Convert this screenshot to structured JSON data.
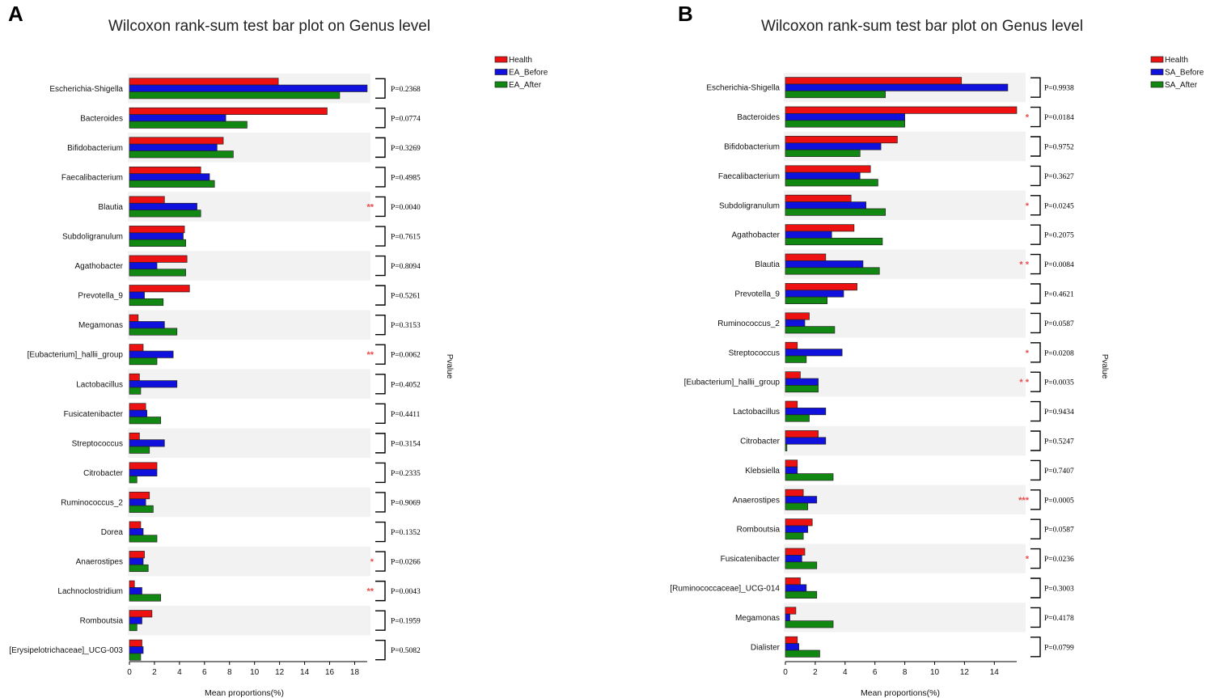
{
  "chart_data": [
    {
      "panel_label": "A",
      "type": "bar",
      "orientation": "horizontal",
      "title": "Wilcoxon rank-sum test bar plot on Genus level",
      "xlabel": "Mean proportions(%)",
      "side_label": "Pvalue",
      "xlim": [
        0,
        19
      ],
      "xticks": [
        "0",
        "2",
        "4",
        "6",
        "8",
        "10",
        "12",
        "14",
        "16",
        "18"
      ],
      "legend": [
        "Health",
        "EA_Before",
        "EA_After"
      ],
      "colors": [
        "#ee1111",
        "#1111dd",
        "#118811"
      ],
      "categories": [
        "Escherichia-Shigella",
        "Bacteroides",
        "Bifidobacterium",
        "Faecalibacterium",
        "Blautia",
        "Subdoligranulum",
        "Agathobacter",
        "Prevotella_9",
        "Megamonas",
        "[Eubacterium]_hallii_group",
        "Lactobacillus",
        "Fusicatenibacter",
        "Streptococcus",
        "Citrobacter",
        "Ruminococcus_2",
        "Dorea",
        "Anaerostipes",
        "Lachnoclostridium",
        "Romboutsia",
        "[Erysipelotrichaceae]_UCG-003"
      ],
      "series": [
        {
          "name": "Health",
          "values": [
            11.9,
            15.8,
            7.5,
            5.7,
            2.8,
            4.4,
            4.6,
            4.8,
            0.7,
            1.1,
            0.8,
            1.3,
            0.8,
            2.2,
            1.6,
            0.9,
            1.2,
            0.4,
            1.8,
            1.0
          ]
        },
        {
          "name": "EA_Before",
          "values": [
            19.0,
            7.7,
            7.0,
            6.4,
            5.4,
            4.3,
            2.2,
            1.2,
            2.8,
            3.5,
            3.8,
            1.4,
            2.8,
            2.2,
            1.3,
            1.1,
            1.1,
            1.0,
            1.0,
            1.1
          ]
        },
        {
          "name": "EA_After",
          "values": [
            16.8,
            9.4,
            8.3,
            6.8,
            5.7,
            4.5,
            4.5,
            2.7,
            3.8,
            2.2,
            0.9,
            2.5,
            1.6,
            0.6,
            1.9,
            2.2,
            1.5,
            2.5,
            0.6,
            0.9
          ]
        }
      ],
      "pvalues": [
        "P=0.2368",
        "P=0.0774",
        "P=0.3269",
        "P=0.4985",
        "P=0.0040",
        "P=0.7615",
        "P=0.8094",
        "P=0.5261",
        "P=0.3153",
        "P=0.0062",
        "P=0.4052",
        "P=0.4411",
        "P=0.3154",
        "P=0.2335",
        "P=0.9069",
        "P=0.1352",
        "P=0.0266",
        "P=0.0043",
        "P=0.1959",
        "P=0.5082"
      ],
      "stars": [
        "",
        "",
        "",
        "",
        "**",
        "",
        "",
        "",
        "",
        "**",
        "",
        "",
        "",
        "",
        "",
        "",
        "*",
        "**",
        "",
        ""
      ]
    },
    {
      "panel_label": "B",
      "type": "bar",
      "orientation": "horizontal",
      "title": "Wilcoxon rank-sum test bar plot on Genus level",
      "xlabel": "Mean proportions(%)",
      "side_label": "Pvalue",
      "xlim": [
        0,
        15.5
      ],
      "xticks": [
        "0",
        "2",
        "4",
        "6",
        "8",
        "10",
        "12",
        "14"
      ],
      "legend": [
        "Health",
        "SA_Before",
        "SA_After"
      ],
      "colors": [
        "#ee1111",
        "#1111dd",
        "#118811"
      ],
      "categories": [
        "Escherichia-Shigella",
        "Bacteroides",
        "Bifidobacterium",
        "Faecalibacterium",
        "Subdoligranulum",
        "Agathobacter",
        "Blautia",
        "Prevotella_9",
        "Ruminococcus_2",
        "Streptococcus",
        "[Eubacterium]_hallii_group",
        "Lactobacillus",
        "Citrobacter",
        "Klebsiella",
        "Anaerostipes",
        "Romboutsia",
        "Fusicatenibacter",
        "[Ruminococcaceae]_UCG-014",
        "Megamonas",
        "Dialister"
      ],
      "series": [
        {
          "name": "Health",
          "values": [
            11.8,
            15.5,
            7.5,
            5.7,
            4.4,
            4.6,
            2.7,
            4.8,
            1.6,
            0.8,
            1.0,
            0.8,
            2.2,
            0.8,
            1.2,
            1.8,
            1.3,
            1.0,
            0.7,
            0.8
          ]
        },
        {
          "name": "SA_Before",
          "values": [
            14.9,
            8.0,
            6.4,
            5.0,
            5.4,
            3.1,
            5.2,
            3.9,
            1.3,
            3.8,
            2.2,
            2.7,
            2.7,
            0.8,
            2.1,
            1.5,
            1.1,
            1.4,
            0.3,
            0.9
          ]
        },
        {
          "name": "SA_After",
          "values": [
            6.7,
            8.0,
            5.0,
            6.2,
            6.7,
            6.5,
            6.3,
            2.8,
            3.3,
            1.4,
            2.2,
            1.6,
            0.1,
            3.2,
            1.5,
            1.2,
            2.1,
            2.1,
            3.2,
            2.3
          ]
        }
      ],
      "pvalues": [
        "P=0.9938",
        "P=0.0184",
        "P=0.9752",
        "P=0.3627",
        "P=0.0245",
        "P=0.2075",
        "P=0.0084",
        "P=0.4621",
        "P=0.0587",
        "P=0.0208",
        "P=0.0035",
        "P=0.9434",
        "P=0.5247",
        "P=0.7407",
        "P=0.0005",
        "P=0.0587",
        "P=0.0236",
        "P=0.3003",
        "P=0.4178",
        "P=0.0799"
      ],
      "stars": [
        "",
        "*",
        "",
        "",
        "*",
        "",
        "* *",
        "",
        "",
        "*",
        "* *",
        "",
        "",
        "",
        "***",
        "",
        "*",
        "",
        "",
        ""
      ]
    }
  ]
}
